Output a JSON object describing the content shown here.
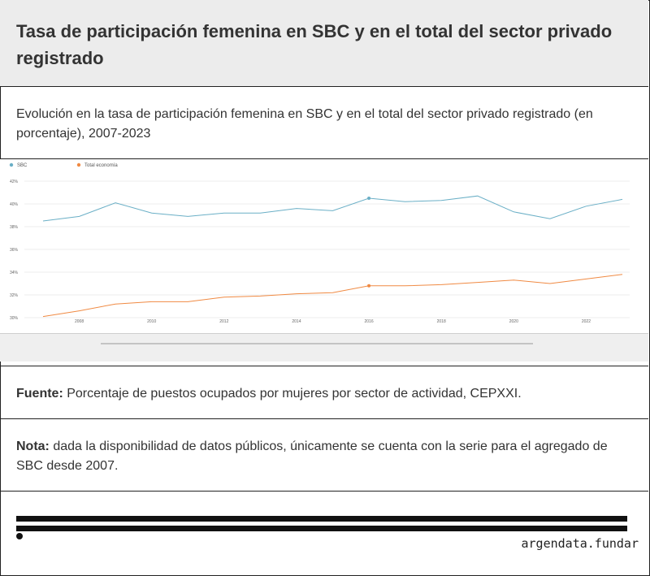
{
  "header": {
    "title": "Tasa de participación femenina en SBC y en el total del sector privado registrado"
  },
  "subtitle": {
    "text": "Evolución en la tasa de participación femenina en SBC y en el total del sector privado registrado (en porcentaje), 2007-2023"
  },
  "source": {
    "label": "Fuente:",
    "text": "Porcentaje de puestos ocupados por mujeres por sector de actividad, CEPXXI."
  },
  "note": {
    "label": "Nota:",
    "text": "dada la disponibilidad de datos públicos, únicamente se cuenta con la serie para el agregado de SBC desde 2007."
  },
  "footer": {
    "brand": "argendata.fundar"
  },
  "colors": {
    "sbc": "#6aafc6",
    "total": "#f08a43",
    "grid": "#e6e6e6"
  },
  "chart_data": {
    "type": "line",
    "title": "",
    "xlabel": "",
    "ylabel": "",
    "x": [
      2007,
      2008,
      2009,
      2010,
      2011,
      2012,
      2013,
      2014,
      2015,
      2016,
      2017,
      2018,
      2019,
      2020,
      2021,
      2022,
      2023
    ],
    "xtick_labels": [
      "2008",
      "2010",
      "2012",
      "2014",
      "2016",
      "2018",
      "2020",
      "2022"
    ],
    "xtick_values": [
      2008,
      2010,
      2012,
      2014,
      2016,
      2018,
      2020,
      2022
    ],
    "ytick_labels": [
      "30%",
      "32%",
      "34%",
      "36%",
      "38%",
      "40%",
      "42%"
    ],
    "ytick_values": [
      30,
      32,
      34,
      36,
      38,
      40,
      42
    ],
    "ylim": [
      30,
      42
    ],
    "grid": true,
    "legend_position": "top-left",
    "series": [
      {
        "name": "SBC",
        "color": "#6aafc6",
        "values": [
          38.5,
          38.9,
          40.1,
          39.2,
          38.9,
          39.2,
          39.2,
          39.6,
          39.4,
          40.5,
          40.2,
          40.3,
          40.7,
          39.3,
          38.7,
          39.8,
          40.4
        ],
        "highlight_index": 9
      },
      {
        "name": "Total economía",
        "color": "#f08a43",
        "values": [
          30.1,
          30.6,
          31.2,
          31.4,
          31.4,
          31.8,
          31.9,
          32.1,
          32.2,
          32.8,
          32.8,
          32.9,
          33.1,
          33.3,
          33.0,
          33.4,
          33.8
        ],
        "highlight_index": 9
      }
    ]
  }
}
